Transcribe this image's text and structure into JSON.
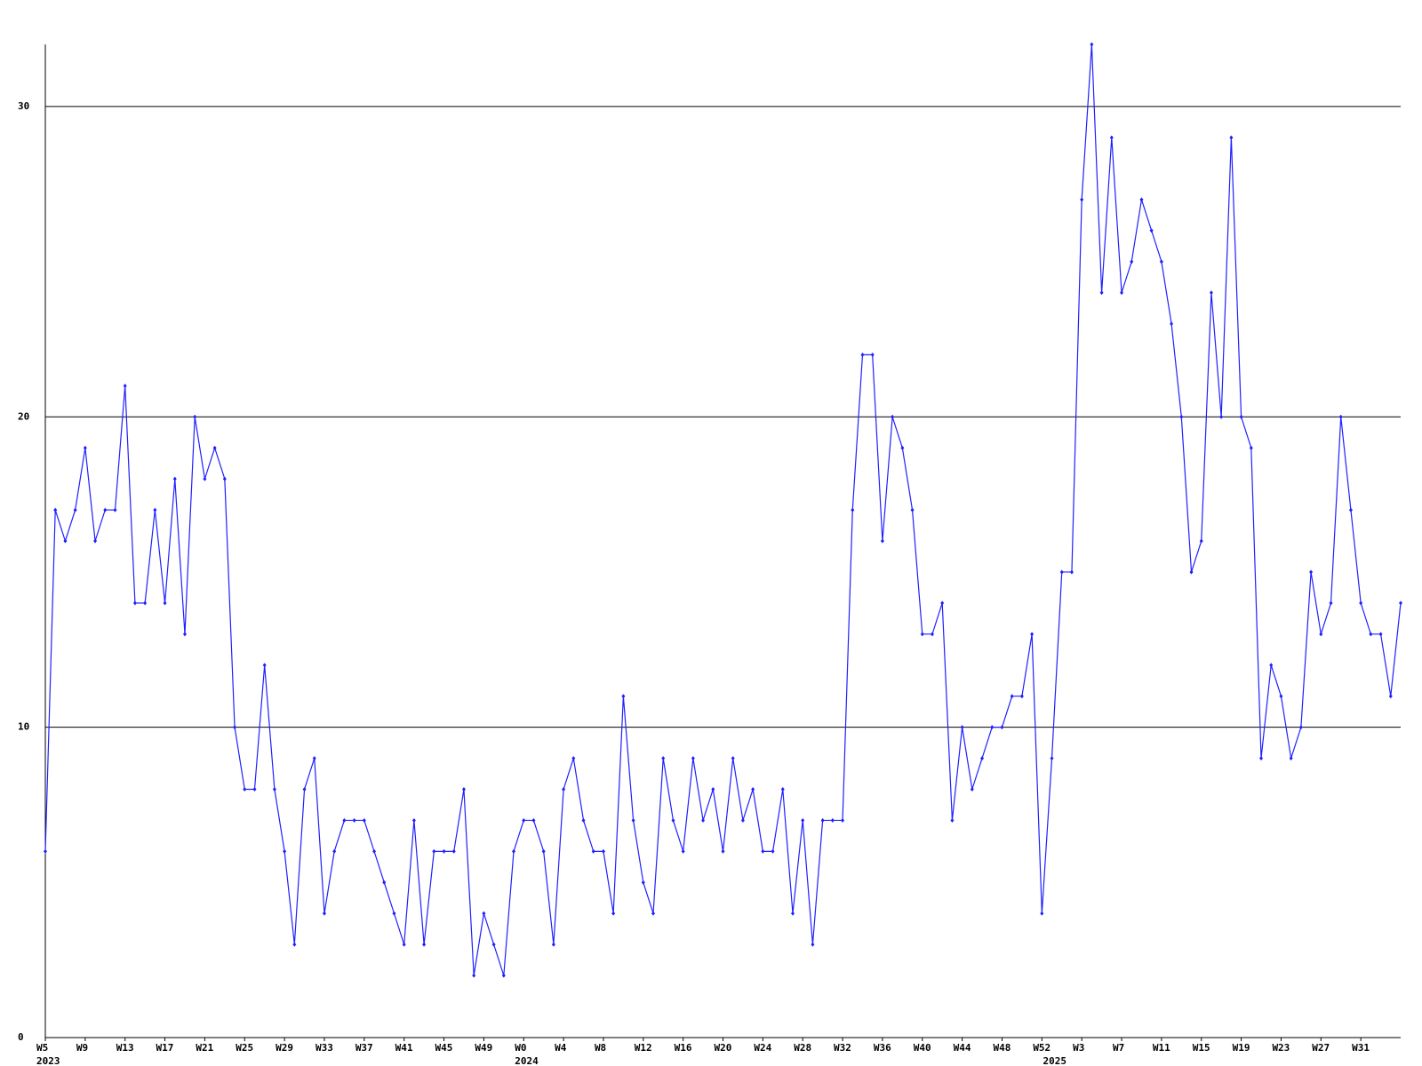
{
  "chart_data": {
    "type": "line",
    "categories": [
      "W5",
      null,
      null,
      null,
      "W9",
      null,
      null,
      null,
      "W13",
      null,
      null,
      null,
      "W17",
      null,
      null,
      null,
      "W21",
      null,
      null,
      null,
      "W25",
      null,
      null,
      null,
      "W29",
      null,
      null,
      null,
      "W33",
      null,
      null,
      null,
      "W37",
      null,
      null,
      null,
      "W41",
      null,
      null,
      null,
      "W45",
      null,
      null,
      null,
      "W49",
      null,
      null,
      null,
      "W0",
      null,
      null,
      null,
      "W4",
      null,
      null,
      null,
      "W8",
      null,
      null,
      null,
      "W12",
      null,
      null,
      null,
      "W16",
      null,
      null,
      null,
      "W20",
      null,
      null,
      null,
      "W24",
      null,
      null,
      null,
      "W28",
      null,
      null,
      null,
      "W32",
      null,
      null,
      null,
      "W36",
      null,
      null,
      null,
      "W40",
      null,
      null,
      null,
      "W44",
      null,
      null,
      null,
      "W48",
      null,
      null,
      null,
      "W52",
      null,
      null,
      null,
      "W3",
      null,
      null,
      null,
      "W7",
      null,
      null,
      null,
      "W11",
      null,
      null,
      null,
      "W15",
      null,
      null,
      null,
      "W19",
      null,
      null,
      null,
      "W23",
      null,
      null,
      null,
      "W27",
      null,
      null,
      null,
      "W31",
      null,
      null,
      null,
      null
    ],
    "year_labels": [
      "2023",
      null,
      null,
      null,
      null,
      null,
      null,
      null,
      null,
      null,
      null,
      null,
      null,
      null,
      null,
      null,
      null,
      null,
      null,
      null,
      null,
      null,
      null,
      null,
      null,
      null,
      null,
      null,
      null,
      null,
      null,
      null,
      null,
      null,
      null,
      null,
      null,
      null,
      null,
      null,
      null,
      null,
      null,
      null,
      null,
      null,
      null,
      null,
      "2024",
      null,
      null,
      null,
      null,
      null,
      null,
      null,
      null,
      null,
      null,
      null,
      null,
      null,
      null,
      null,
      null,
      null,
      null,
      null,
      null,
      null,
      null,
      null,
      null,
      null,
      null,
      null,
      null,
      null,
      null,
      null,
      null,
      null,
      null,
      null,
      null,
      null,
      null,
      null,
      null,
      null,
      null,
      null,
      null,
      null,
      null,
      null,
      null,
      null,
      null,
      null,
      null,
      "2025",
      null,
      null,
      null,
      null,
      null,
      null,
      null,
      null,
      null,
      null,
      null,
      null,
      null,
      null,
      null,
      null,
      null,
      null,
      null,
      null,
      null,
      null,
      null,
      null,
      null,
      null,
      null,
      null,
      null,
      null,
      null,
      null,
      null,
      null,
      null
    ],
    "series": [
      {
        "color": "#2020ff",
        "values": [
          6,
          17,
          16,
          17,
          19,
          16,
          17,
          17,
          21,
          14,
          14,
          17,
          14,
          18,
          13,
          20,
          18,
          19,
          18,
          10,
          8,
          8,
          12,
          8,
          6,
          3,
          8,
          9,
          4,
          6,
          7,
          7,
          7,
          6,
          5,
          4,
          3,
          7,
          3,
          6,
          6,
          6,
          8,
          2,
          4,
          3,
          2,
          6,
          7,
          7,
          6,
          3,
          8,
          9,
          7,
          6,
          6,
          4,
          11,
          7,
          5,
          4,
          9,
          7,
          6,
          9,
          7,
          8,
          6,
          9,
          7,
          8,
          6,
          6,
          8,
          4,
          7,
          3,
          7,
          7,
          7,
          17,
          22,
          22,
          16,
          20,
          19,
          17,
          13,
          13,
          14,
          7,
          10,
          8,
          9,
          10,
          10,
          11,
          11,
          13,
          4,
          9,
          15,
          15,
          27,
          32,
          24,
          29,
          24,
          25,
          27,
          26,
          25,
          23,
          20,
          15,
          16,
          24,
          20,
          29,
          20,
          19,
          9,
          12,
          11,
          9,
          10,
          15,
          13,
          14,
          20,
          17,
          14,
          13,
          13,
          11,
          14
        ]
      }
    ],
    "ylim": [
      0,
      32
    ],
    "yticks": [
      0,
      10,
      20,
      30
    ],
    "grid": true
  }
}
